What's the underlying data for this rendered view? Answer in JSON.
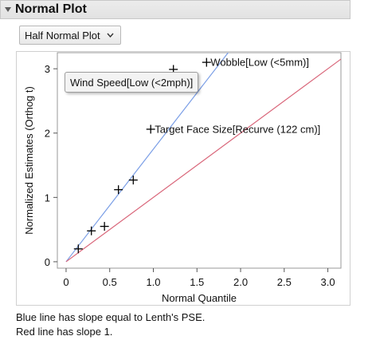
{
  "report": {
    "title": "Normal Plot",
    "plot_type_selected": "Half Normal Plot"
  },
  "notes": {
    "line1": "Blue line has slope equal to Lenth's PSE.",
    "line2": "Red line has slope 1."
  },
  "icons": {
    "disclosure": "disclosure-triangle-down-icon",
    "dropdown": "chevron-down-icon"
  },
  "colors": {
    "blue_line": "#7a9ee6",
    "red_line": "#d9667a",
    "marker": "#000000"
  },
  "chart_data": {
    "type": "scatter",
    "title": "",
    "xlabel": "Normal Quantile",
    "ylabel": "Normalized Estimates (Orthog t)",
    "xlim": [
      -0.1,
      3.15
    ],
    "ylim": [
      -0.1,
      3.25
    ],
    "xticks": [
      0,
      0.5,
      1.0,
      1.5,
      2.0,
      2.5,
      3.0
    ],
    "xtick_labels": [
      "0",
      "0.5",
      "1.0",
      "1.5",
      "2.0",
      "2.5",
      "3.0"
    ],
    "yticks": [
      0,
      1,
      2,
      3
    ],
    "ytick_labels": [
      "0",
      "1",
      "2",
      "3"
    ],
    "grid": false,
    "points": [
      {
        "x": 0.14,
        "y": 0.2
      },
      {
        "x": 0.29,
        "y": 0.48
      },
      {
        "x": 0.44,
        "y": 0.55
      },
      {
        "x": 0.6,
        "y": 1.12
      },
      {
        "x": 0.77,
        "y": 1.27
      },
      {
        "x": 0.97,
        "y": 2.06,
        "label": "Target Face Size[Recurve (122 cm)]"
      },
      {
        "x": 1.23,
        "y": 2.99,
        "label": "Wind Speed[Low (<2mph)]"
      },
      {
        "x": 1.61,
        "y": 3.1,
        "label": "Wobble[Low (<5mm)]"
      }
    ],
    "lines": [
      {
        "name": "Lenth's PSE",
        "slope": 1.75,
        "intercept": 0,
        "color": "#7a9ee6"
      },
      {
        "name": "Slope 1",
        "slope": 1.0,
        "intercept": 0,
        "color": "#d9667a"
      }
    ],
    "hover_label": "Wind Speed[Low (<2mph)]"
  }
}
